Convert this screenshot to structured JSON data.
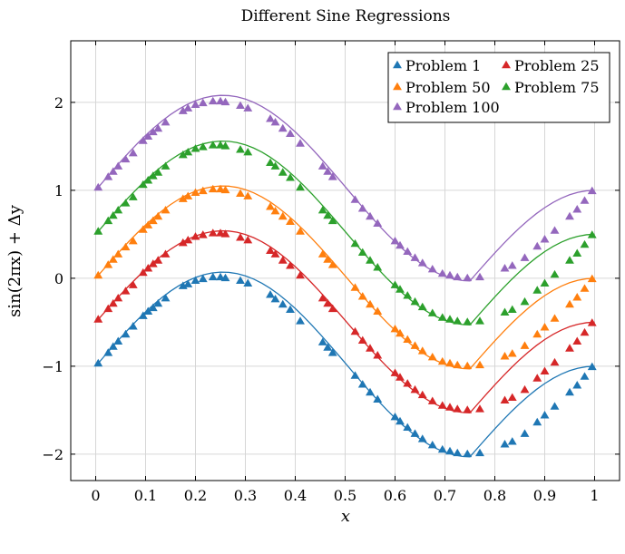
{
  "chart_data": {
    "type": "line",
    "title": "Different Sine Regressions",
    "xlabel": "x",
    "ylabel": "sin(2πx) + Δy",
    "xlim": [
      -0.05,
      1.05
    ],
    "ylim": [
      -2.3,
      2.7
    ],
    "grid": true,
    "legend_position": "top-right",
    "xticks": [
      0,
      0.1,
      0.2,
      0.3,
      0.4,
      0.5,
      0.6,
      0.7,
      0.8,
      0.9,
      1
    ],
    "xtick_labels": [
      "0",
      "0.1",
      "0.2",
      "0.3",
      "0.4",
      "0.5",
      "0.6",
      "0.7",
      "0.8",
      "0.9",
      "1"
    ],
    "yticks": [
      -2,
      -1,
      0,
      1,
      2
    ],
    "ytick_labels": [
      "−2",
      "−1",
      "0",
      "1",
      "2"
    ],
    "x": [
      0.005,
      0.025,
      0.035,
      0.045,
      0.06,
      0.075,
      0.095,
      0.105,
      0.115,
      0.125,
      0.14,
      0.175,
      0.185,
      0.2,
      0.215,
      0.235,
      0.25,
      0.26,
      0.29,
      0.305,
      0.35,
      0.36,
      0.375,
      0.39,
      0.41,
      0.455,
      0.465,
      0.475,
      0.52,
      0.535,
      0.55,
      0.565,
      0.6,
      0.61,
      0.625,
      0.64,
      0.655,
      0.675,
      0.695,
      0.71,
      0.725,
      0.745,
      0.77,
      0.82,
      0.835,
      0.86,
      0.885,
      0.9,
      0.92,
      0.95,
      0.965,
      0.98,
      0.995
    ],
    "series": [
      {
        "name": "Problem 1",
        "color": "#1f77b4",
        "offset": -1,
        "values": [
          -0.97,
          -0.85,
          -0.78,
          -0.72,
          -0.64,
          -0.55,
          -0.43,
          -0.38,
          -0.34,
          -0.29,
          -0.23,
          -0.09,
          -0.07,
          -0.03,
          -0.01,
          0.01,
          0.01,
          0.0,
          -0.03,
          -0.06,
          -0.19,
          -0.24,
          -0.3,
          -0.36,
          -0.49,
          -0.73,
          -0.79,
          -0.85,
          -1.11,
          -1.21,
          -1.3,
          -1.38,
          -1.58,
          -1.63,
          -1.7,
          -1.77,
          -1.83,
          -1.9,
          -1.95,
          -1.97,
          -1.99,
          -2.0,
          -1.99,
          -1.89,
          -1.86,
          -1.77,
          -1.64,
          -1.56,
          -1.46,
          -1.3,
          -1.22,
          -1.12,
          -1.01
        ],
        "fit_peak": 0.07,
        "fit_trough": -2.03
      },
      {
        "name": "Problem 25",
        "color": "#d62728",
        "offset": -0.5,
        "values": [
          -0.47,
          -0.35,
          -0.29,
          -0.23,
          -0.15,
          -0.08,
          0.06,
          0.11,
          0.16,
          0.2,
          0.27,
          0.4,
          0.43,
          0.47,
          0.49,
          0.51,
          0.51,
          0.5,
          0.46,
          0.43,
          0.31,
          0.27,
          0.2,
          0.14,
          0.03,
          -0.23,
          -0.29,
          -0.35,
          -0.61,
          -0.71,
          -0.8,
          -0.88,
          -1.08,
          -1.13,
          -1.2,
          -1.27,
          -1.33,
          -1.4,
          -1.45,
          -1.47,
          -1.49,
          -1.5,
          -1.49,
          -1.39,
          -1.36,
          -1.27,
          -1.14,
          -1.06,
          -0.96,
          -0.8,
          -0.72,
          -0.62,
          -0.51
        ],
        "fit_peak": 0.54,
        "fit_trough": -1.53
      },
      {
        "name": "Problem 50",
        "color": "#ff7f0e",
        "offset": 0,
        "values": [
          0.03,
          0.15,
          0.21,
          0.27,
          0.35,
          0.42,
          0.55,
          0.6,
          0.65,
          0.7,
          0.77,
          0.9,
          0.93,
          0.97,
          0.99,
          1.01,
          1.01,
          1.0,
          0.96,
          0.93,
          0.81,
          0.76,
          0.7,
          0.64,
          0.53,
          0.27,
          0.21,
          0.15,
          -0.11,
          -0.21,
          -0.3,
          -0.38,
          -0.58,
          -0.63,
          -0.7,
          -0.77,
          -0.83,
          -0.9,
          -0.95,
          -0.97,
          -0.99,
          -1.0,
          -0.99,
          -0.89,
          -0.86,
          -0.77,
          -0.64,
          -0.56,
          -0.46,
          -0.3,
          -0.22,
          -0.12,
          -0.01
        ],
        "fit_peak": 1.05,
        "fit_trough": -1.03
      },
      {
        "name": "Problem 75",
        "color": "#2ca02c",
        "offset": 0.5,
        "values": [
          0.53,
          0.65,
          0.71,
          0.77,
          0.85,
          0.92,
          1.06,
          1.11,
          1.16,
          1.2,
          1.27,
          1.4,
          1.43,
          1.47,
          1.49,
          1.51,
          1.51,
          1.5,
          1.46,
          1.43,
          1.31,
          1.27,
          1.2,
          1.14,
          1.03,
          0.77,
          0.71,
          0.65,
          0.39,
          0.29,
          0.2,
          0.12,
          -0.08,
          -0.13,
          -0.2,
          -0.27,
          -0.33,
          -0.4,
          -0.45,
          -0.47,
          -0.49,
          -0.5,
          -0.49,
          -0.39,
          -0.36,
          -0.27,
          -0.14,
          -0.06,
          0.04,
          0.2,
          0.28,
          0.38,
          0.49
        ],
        "fit_peak": 1.56,
        "fit_trough": -0.53
      },
      {
        "name": "Problem 100",
        "color": "#9467bd",
        "offset": 1,
        "values": [
          1.03,
          1.15,
          1.21,
          1.27,
          1.35,
          1.42,
          1.56,
          1.61,
          1.66,
          1.7,
          1.77,
          1.9,
          1.93,
          1.97,
          1.99,
          2.01,
          2.01,
          2.0,
          1.96,
          1.93,
          1.81,
          1.77,
          1.7,
          1.64,
          1.53,
          1.27,
          1.21,
          1.15,
          0.89,
          0.79,
          0.7,
          0.62,
          0.42,
          0.37,
          0.3,
          0.23,
          0.17,
          0.1,
          0.05,
          0.03,
          0.01,
          0.0,
          0.01,
          0.11,
          0.14,
          0.23,
          0.36,
          0.44,
          0.54,
          0.7,
          0.78,
          0.88,
          0.99
        ],
        "fit_peak": 2.08,
        "fit_trough": -0.03
      }
    ]
  }
}
